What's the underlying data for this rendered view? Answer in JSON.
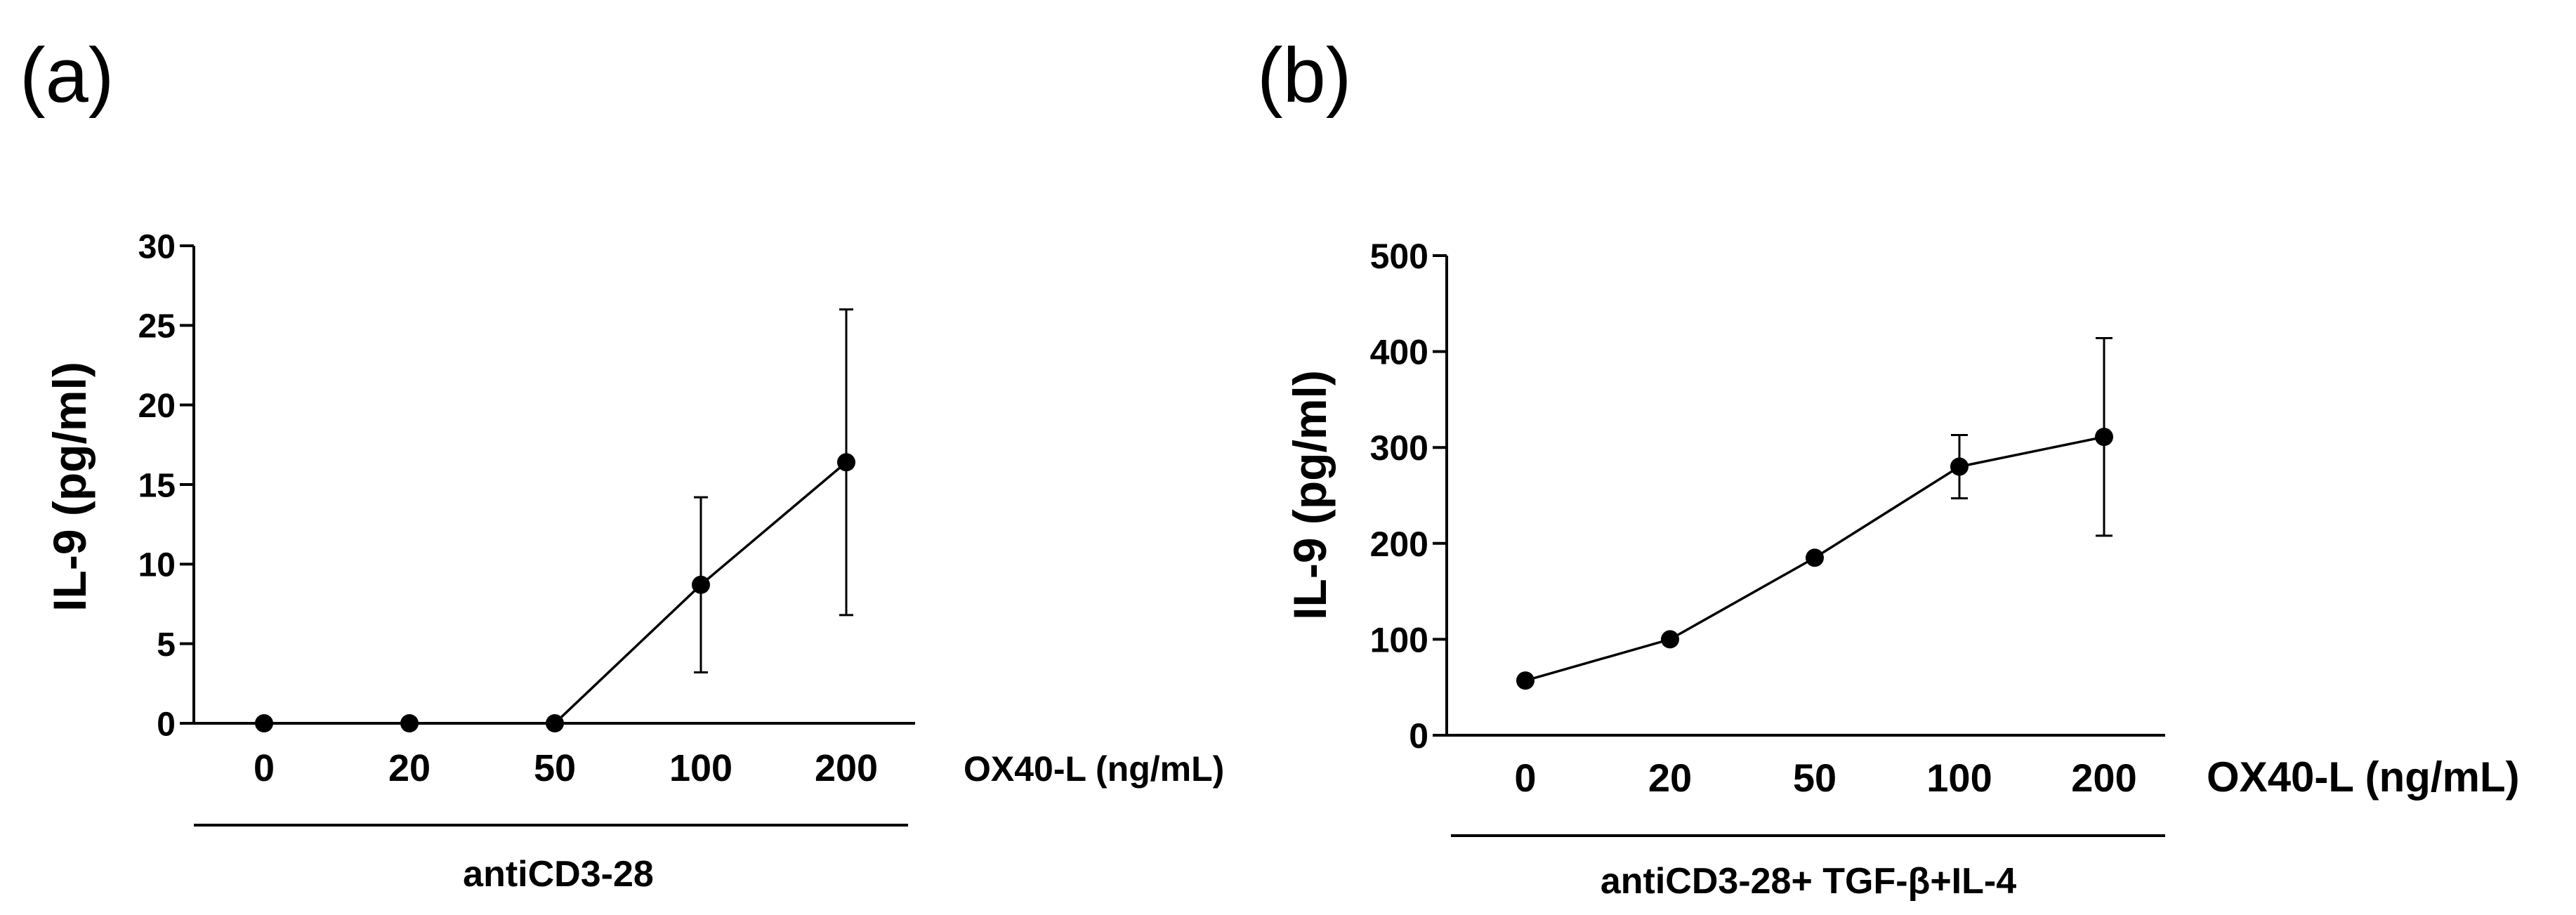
{
  "chart_data": [
    {
      "type": "line",
      "panel_label": "(a)",
      "categories": [
        "0",
        "20",
        "50",
        "100",
        "200"
      ],
      "values": [
        0,
        0,
        0,
        8.7,
        16.4
      ],
      "error_upper": [
        0,
        0,
        0,
        14.2,
        26.0
      ],
      "error_lower": [
        0,
        0,
        0,
        3.2,
        6.8
      ],
      "ylabel": "IL-9 (pg/ml)",
      "yticks": [
        "0",
        "5",
        "10",
        "15",
        "20",
        "25",
        "30"
      ],
      "ylim": [
        0,
        30
      ],
      "xlabel": "OX40-L (ng/mL)",
      "group_label": "antiCD3-28",
      "color": "#000000"
    },
    {
      "type": "line",
      "panel_label": "(b)",
      "categories": [
        "0",
        "20",
        "50",
        "100",
        "200"
      ],
      "values": [
        57,
        100,
        185,
        280,
        311
      ],
      "error_upper": [
        57,
        100,
        185,
        313,
        414
      ],
      "error_lower": [
        57,
        100,
        185,
        247,
        208
      ],
      "ylabel": "IL-9 (pg/ml)",
      "yticks": [
        "0",
        "100",
        "200",
        "300",
        "400",
        "500"
      ],
      "ylim": [
        0,
        500
      ],
      "xlabel": "OX40-L (ng/mL)",
      "group_label": "antiCD3-28+ TGF-β+IL-4",
      "color": "#000000"
    }
  ]
}
